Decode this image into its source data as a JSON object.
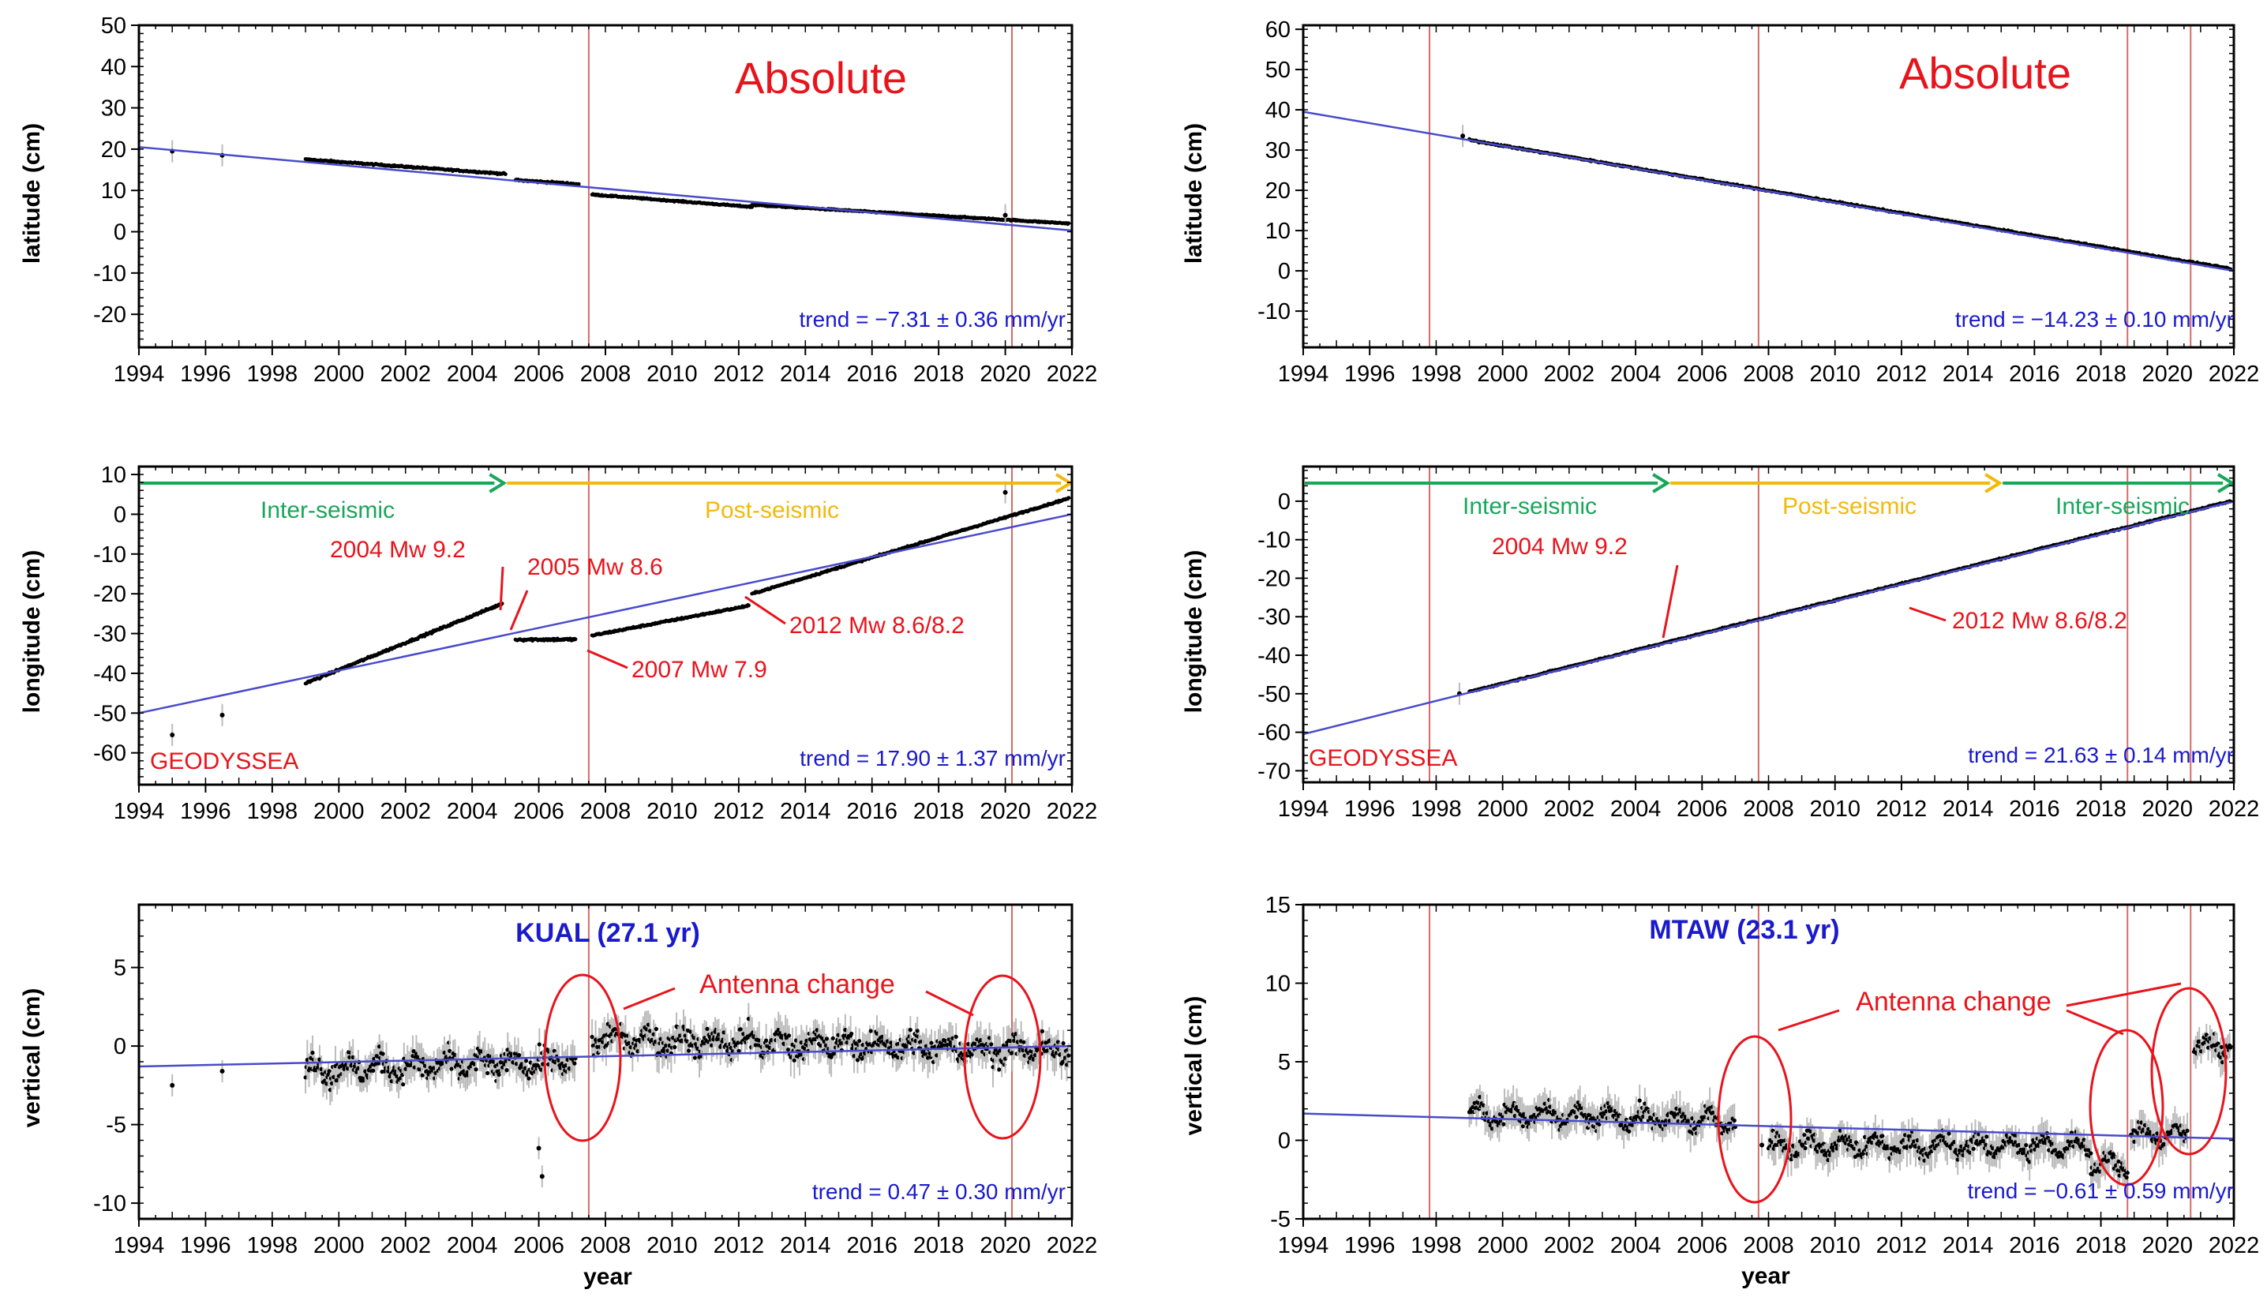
{
  "colors": {
    "red": "#e8141c",
    "blue": "#1a1acc",
    "trend_line": "#4a4acc",
    "green": "#19a65a",
    "yellow": "#f2b90c",
    "event_line": "#d46a6a",
    "points": "#000000",
    "errorbar": "#bbbbbb"
  },
  "chart_data": [
    {
      "id": "kual-latitude",
      "type": "scatter",
      "station": "KUAL",
      "xlabel": "",
      "ylabel": "latitude (cm)",
      "xlim": [
        1994,
        2022
      ],
      "ylim": [
        -28,
        50
      ],
      "xticks": [
        1994,
        1996,
        1998,
        2000,
        2002,
        2004,
        2006,
        2008,
        2010,
        2012,
        2014,
        2016,
        2018,
        2020,
        2022
      ],
      "yticks": [
        -20,
        -10,
        0,
        10,
        20,
        30,
        40,
        50
      ],
      "event_lines": [
        2007.5,
        2020.2
      ],
      "trend_line": {
        "x": [
          1994,
          2022
        ],
        "y": [
          20.5,
          0.3
        ]
      },
      "trend_text": "trend = −7.31 ± 0.36 mm/yr",
      "title_text": "Absolute",
      "segments": [
        {
          "x0": 1999.0,
          "x1": 2005.0,
          "y0": 17.5,
          "y1": 14.0,
          "noise": 0.5
        },
        {
          "x0": 2005.3,
          "x1": 2007.2,
          "y0": 12.5,
          "y1": 11.5,
          "noise": 0.6
        },
        {
          "x0": 2007.6,
          "x1": 2012.4,
          "y0": 9.0,
          "y1": 6.0,
          "noise": 0.4
        },
        {
          "x0": 2012.4,
          "x1": 2021.9,
          "y0": 6.5,
          "y1": 2.0,
          "noise": 0.4
        }
      ],
      "isolated_points": [
        [
          1995.0,
          19.5
        ],
        [
          1996.5,
          18.5
        ],
        [
          2020.0,
          4.0
        ]
      ]
    },
    {
      "id": "kual-longitude",
      "type": "scatter",
      "station": "KUAL",
      "xlabel": "",
      "ylabel": "longitude (cm)",
      "xlim": [
        1994,
        2022
      ],
      "ylim": [
        -68,
        12
      ],
      "xticks": [
        1994,
        1996,
        1998,
        2000,
        2002,
        2004,
        2006,
        2008,
        2010,
        2012,
        2014,
        2016,
        2018,
        2020,
        2022
      ],
      "yticks": [
        -60,
        -50,
        -40,
        -30,
        -20,
        -10,
        0,
        10
      ],
      "event_lines": [
        2007.5,
        2020.2
      ],
      "trend_line": {
        "x": [
          1994,
          2022
        ],
        "y": [
          -50,
          0
        ]
      },
      "trend_text": "trend = 17.90 ± 1.37 mm/yr",
      "label_bottom_left": "GEODYSSEA",
      "phase_arrows": [
        {
          "label": "Inter-seismic",
          "x0": 1994,
          "x1": 2005.0,
          "color": "green"
        },
        {
          "label": "Post-seismic",
          "x0": 2005.0,
          "x1": 2022,
          "color": "yellow"
        }
      ],
      "annotations": [
        "2004 Mw 9.2",
        "2005 Mw 8.6",
        "2007 Mw 7.9",
        "2012 Mw 8.6/8.2"
      ],
      "segments": [
        {
          "x0": 1999.0,
          "x1": 2004.9,
          "y0": -42.5,
          "y1": -22.5,
          "noise": 0.7
        },
        {
          "x0": 2005.3,
          "x1": 2007.1,
          "y0": -31.5,
          "y1": -31.5,
          "noise": 0.9
        },
        {
          "x0": 2007.6,
          "x1": 2012.3,
          "y0": -30.5,
          "y1": -23.0,
          "noise": 0.6
        },
        {
          "x0": 2012.4,
          "x1": 2021.9,
          "y0": -20.0,
          "y1": 4.0,
          "noise": 0.5
        }
      ],
      "isolated_points": [
        [
          1995.0,
          -55.5
        ],
        [
          1996.5,
          -50.5
        ],
        [
          2020.0,
          5.5
        ]
      ]
    },
    {
      "id": "kual-vertical",
      "type": "scatter",
      "station": "KUAL",
      "xlabel": "year",
      "ylabel": "vertical (cm)",
      "xlim": [
        1994,
        2022
      ],
      "ylim": [
        -11,
        9
      ],
      "xticks": [
        1994,
        1996,
        1998,
        2000,
        2002,
        2004,
        2006,
        2008,
        2010,
        2012,
        2014,
        2016,
        2018,
        2020,
        2022
      ],
      "yticks": [
        -10,
        -5,
        0,
        5
      ],
      "event_lines": [
        2007.5,
        2020.2
      ],
      "trend_line": {
        "x": [
          1994,
          2022
        ],
        "y": [
          -1.3,
          0.0
        ]
      },
      "trend_text": "trend = 0.47 ± 0.30 mm/yr",
      "station_title": "KUAL (27.1 yr)",
      "annotations": [
        "Antenna  change"
      ],
      "segments": [
        {
          "x0": 1999.0,
          "x1": 2007.1,
          "y0": -1.5,
          "y1": -1.0,
          "noise": 1.6
        },
        {
          "x0": 2007.6,
          "x1": 2021.9,
          "y0": 0.5,
          "y1": -0.3,
          "noise": 1.6
        }
      ],
      "isolated_points": [
        [
          1995.0,
          -2.5
        ],
        [
          1996.5,
          -1.6
        ],
        [
          2006.0,
          -6.5
        ],
        [
          2006.1,
          -8.3
        ]
      ]
    },
    {
      "id": "mtaw-latitude",
      "type": "scatter",
      "station": "MTAW",
      "xlabel": "",
      "ylabel": "latitude (cm)",
      "xlim": [
        1994,
        2022
      ],
      "ylim": [
        -19,
        61
      ],
      "xticks": [
        1994,
        1996,
        1998,
        2000,
        2002,
        2004,
        2006,
        2008,
        2010,
        2012,
        2014,
        2016,
        2018,
        2020,
        2022
      ],
      "yticks": [
        -10,
        0,
        10,
        20,
        30,
        40,
        50,
        60
      ],
      "event_lines": [
        1997.8,
        2007.7,
        2018.8,
        2020.7
      ],
      "trend_line": {
        "x": [
          1994,
          2022
        ],
        "y": [
          39.5,
          0.0
        ]
      },
      "trend_text": "trend = −14.23 ± 0.10 mm/yr",
      "title_text": "Absolute",
      "segments": [
        {
          "x0": 1999.0,
          "x1": 2021.9,
          "y0": 32.5,
          "y1": 0.5,
          "noise": 0.5
        }
      ],
      "isolated_points": [
        [
          1998.8,
          33.5
        ]
      ]
    },
    {
      "id": "mtaw-longitude",
      "type": "scatter",
      "station": "MTAW",
      "xlabel": "",
      "ylabel": "longitude (cm)",
      "xlim": [
        1994,
        2022
      ],
      "ylim": [
        -73,
        9
      ],
      "xticks": [
        1994,
        1996,
        1998,
        2000,
        2002,
        2004,
        2006,
        2008,
        2010,
        2012,
        2014,
        2016,
        2018,
        2020,
        2022
      ],
      "yticks": [
        -70,
        -60,
        -50,
        -40,
        -30,
        -20,
        -10,
        0
      ],
      "event_lines": [
        1997.8,
        2007.7,
        2018.8,
        2020.7
      ],
      "trend_line": {
        "x": [
          1994,
          2022
        ],
        "y": [
          -60.5,
          0.0
        ]
      },
      "trend_text": "trend = 21.63 ± 0.14 mm/yr",
      "label_bottom_left": "GEODYSSEA",
      "phase_arrows": [
        {
          "label": "Inter-seismic",
          "x0": 1994,
          "x1": 2005.0,
          "color": "green"
        },
        {
          "label": "Post-seismic",
          "x0": 2005.0,
          "x1": 2015.0,
          "color": "yellow"
        },
        {
          "label": "Inter-seismic",
          "x0": 2015.0,
          "x1": 2022,
          "color": "green"
        }
      ],
      "annotations": [
        "2004 Mw 9.2",
        "2012 Mw 8.6/8.2"
      ],
      "segments": [
        {
          "x0": 1999.0,
          "x1": 2021.9,
          "y0": -49.5,
          "y1": 0.0,
          "noise": 0.5
        }
      ],
      "isolated_points": [
        [
          1998.7,
          -50.0
        ]
      ]
    },
    {
      "id": "mtaw-vertical",
      "type": "scatter",
      "station": "MTAW",
      "xlabel": "year",
      "ylabel": "vertical (cm)",
      "xlim": [
        1994,
        2022
      ],
      "ylim": [
        -5,
        15
      ],
      "xticks": [
        1994,
        1996,
        1998,
        2000,
        2002,
        2004,
        2006,
        2008,
        2010,
        2012,
        2014,
        2016,
        2018,
        2020,
        2022
      ],
      "yticks": [
        -5,
        0,
        5,
        10,
        15
      ],
      "event_lines": [
        1997.8,
        2007.7,
        2018.8,
        2020.7
      ],
      "trend_line": {
        "x": [
          1994,
          2022
        ],
        "y": [
          1.7,
          0.1
        ]
      },
      "trend_text": "trend = −0.61 ± 0.59 mm/yr",
      "station_title": "MTAW (23.1 yr)",
      "annotations": [
        "Antenna  change"
      ],
      "segments": [
        {
          "x0": 1999.0,
          "x1": 2007.0,
          "y0": 1.7,
          "y1": 1.2,
          "noise": 1.2
        },
        {
          "x0": 2008.0,
          "x1": 2017.7,
          "y0": -0.3,
          "y1": -0.4,
          "noise": 1.2
        },
        {
          "x0": 2017.7,
          "x1": 2018.8,
          "y0": -1.5,
          "y1": -1.5,
          "noise": 1.0
        },
        {
          "x0": 2018.9,
          "x1": 2020.6,
          "y0": 0.3,
          "y1": 0.3,
          "noise": 1.0
        },
        {
          "x0": 2020.8,
          "x1": 2021.9,
          "y0": 6.0,
          "y1": 6.0,
          "noise": 1.2
        }
      ],
      "isolated_points": [
        [
          2007.8,
          -0.3
        ]
      ]
    }
  ]
}
